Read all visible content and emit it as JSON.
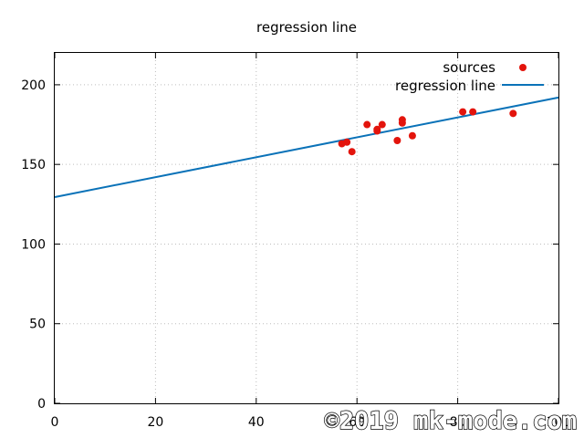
{
  "chart_data": {
    "type": "scatter",
    "title": "regression line",
    "xlabel": "",
    "ylabel": "",
    "xlim": [
      0,
      100
    ],
    "ylim": [
      0,
      220
    ],
    "xticks": [
      0,
      20,
      40,
      60,
      80,
      100
    ],
    "yticks": [
      0,
      50,
      100,
      150,
      200
    ],
    "grid": true,
    "legend_position": "top-right",
    "series": [
      {
        "name": "sources",
        "kind": "points",
        "color": "#e3140c",
        "points": [
          [
            57,
            163
          ],
          [
            58,
            164
          ],
          [
            59,
            158
          ],
          [
            62,
            175
          ],
          [
            64,
            172
          ],
          [
            64,
            171
          ],
          [
            65,
            175
          ],
          [
            68,
            165
          ],
          [
            69,
            178
          ],
          [
            69,
            176
          ],
          [
            71,
            168
          ],
          [
            81,
            183
          ],
          [
            83,
            183
          ],
          [
            91,
            182
          ]
        ]
      },
      {
        "name": "regression line",
        "kind": "line",
        "color": "#0a72b8",
        "intercept": 129.5,
        "slope": 0.625
      }
    ]
  },
  "watermark": "©2019 mk-mode.com"
}
